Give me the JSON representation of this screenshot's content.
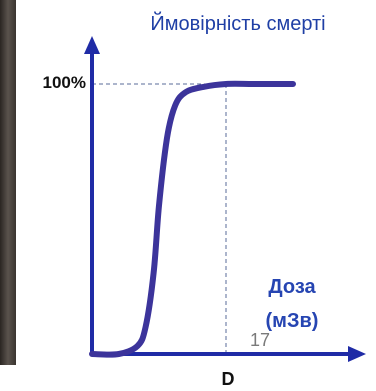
{
  "chart_data": {
    "type": "line",
    "title": "Ймовірність смерті",
    "xlabel_line1": "Доза",
    "xlabel_line2": "(мЗв)",
    "x_tick_label": "D",
    "y_tick_label": "100%",
    "grid": false,
    "curve_color": "#3c349b",
    "axis_color": "#1f2ba6",
    "xlabel_color": "#2645b2",
    "series": [
      {
        "x": [
          0,
          0.1,
          0.17,
          0.2,
          0.23,
          0.25,
          0.28,
          0.31,
          0.35,
          0.42,
          0.5,
          0.6,
          0.7,
          0.75
        ],
        "y": [
          0,
          0.0,
          0.03,
          0.1,
          0.3,
          0.55,
          0.8,
          0.92,
          0.97,
          0.99,
          1.0,
          1.0,
          1.0,
          1.0
        ]
      }
    ],
    "reference_x": 0.5,
    "xlim": [
      0,
      1
    ],
    "ylim": [
      0,
      1.1
    ]
  },
  "page_number": "17"
}
